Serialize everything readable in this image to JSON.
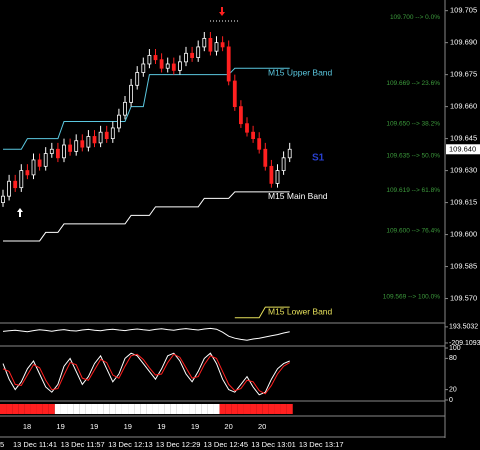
{
  "chart_data": [
    {
      "type": "candlestick",
      "open": [
        109.615,
        109.618,
        109.625,
        109.622,
        109.63,
        109.628,
        109.635,
        109.632,
        109.638,
        109.64,
        109.636,
        109.642,
        109.639,
        109.644,
        109.641,
        109.646,
        109.643,
        109.648,
        109.645,
        109.65,
        109.656,
        109.662,
        109.67,
        109.676,
        109.68,
        109.684,
        109.682,
        109.678,
        109.68,
        109.677,
        109.681,
        109.685,
        109.683,
        109.688,
        109.692,
        109.686,
        109.69,
        109.688,
        109.672,
        109.66,
        109.652,
        109.648,
        109.645,
        109.64,
        109.632,
        109.624,
        109.63,
        109.636
      ],
      "high": [
        109.621,
        109.628,
        109.628,
        109.633,
        109.633,
        109.638,
        109.638,
        109.641,
        109.643,
        109.643,
        109.645,
        109.645,
        109.647,
        109.647,
        109.649,
        109.649,
        109.651,
        109.651,
        109.653,
        109.659,
        109.665,
        109.673,
        109.679,
        109.683,
        109.687,
        109.687,
        109.685,
        109.683,
        109.683,
        109.684,
        109.688,
        109.688,
        109.691,
        109.695,
        109.695,
        109.693,
        109.693,
        109.691,
        109.675,
        109.663,
        109.655,
        109.651,
        109.648,
        109.643,
        109.635,
        109.633,
        109.639,
        109.643
      ],
      "low": [
        109.613,
        109.616,
        109.62,
        109.62,
        109.626,
        109.626,
        109.63,
        109.63,
        109.636,
        109.634,
        109.634,
        109.637,
        109.637,
        109.639,
        109.639,
        109.641,
        109.641,
        109.643,
        109.643,
        109.648,
        109.654,
        109.66,
        109.668,
        109.674,
        109.678,
        109.68,
        109.676,
        109.676,
        109.675,
        109.675,
        109.679,
        109.681,
        109.681,
        109.686,
        109.684,
        109.684,
        109.686,
        109.67,
        109.658,
        109.65,
        109.646,
        109.643,
        109.638,
        109.63,
        109.622,
        109.622,
        109.628,
        109.634
      ],
      "close": [
        109.618,
        109.625,
        109.622,
        109.63,
        109.628,
        109.635,
        109.632,
        109.638,
        109.64,
        109.636,
        109.642,
        109.639,
        109.644,
        109.641,
        109.646,
        109.643,
        109.648,
        109.645,
        109.65,
        109.656,
        109.662,
        109.67,
        109.676,
        109.68,
        109.684,
        109.682,
        109.678,
        109.68,
        109.677,
        109.681,
        109.685,
        109.683,
        109.688,
        109.692,
        109.686,
        109.69,
        109.688,
        109.672,
        109.66,
        109.652,
        109.648,
        109.645,
        109.64,
        109.632,
        109.624,
        109.63,
        109.636,
        109.64
      ],
      "up_color": "#ffffff",
      "down_color": "#ff2020",
      "ylim": [
        109.559,
        109.71
      ],
      "yticks": [
        {
          "value": 109.705,
          "label": "109.705"
        },
        {
          "value": 109.69,
          "label": "109.690"
        },
        {
          "value": 109.675,
          "label": "109.675"
        },
        {
          "value": 109.66,
          "label": "109.660"
        },
        {
          "value": 109.645,
          "label": "109.645"
        },
        {
          "value": 109.63,
          "label": "109.630"
        },
        {
          "value": 109.615,
          "label": "109.615"
        },
        {
          "value": 109.6,
          "label": "109.600"
        },
        {
          "value": 109.585,
          "label": "109.585"
        },
        {
          "value": 109.57,
          "label": "109.570"
        }
      ],
      "last_price": {
        "value": 109.64,
        "label": "109.640"
      },
      "series": [
        {
          "name": "M15 Upper Band",
          "color": "#5bc8e0",
          "values": [
            109.64,
            109.64,
            109.64,
            109.64,
            109.645,
            109.645,
            109.645,
            109.645,
            109.645,
            109.645,
            109.653,
            109.653,
            109.653,
            109.653,
            109.653,
            109.653,
            109.653,
            109.653,
            109.653,
            109.653,
            109.653,
            109.66,
            109.66,
            109.66,
            109.675,
            109.675,
            109.675,
            109.675,
            109.675,
            109.675,
            109.675,
            109.675,
            109.675,
            109.675,
            109.675,
            109.675,
            109.675,
            109.675,
            109.678,
            109.678,
            109.678,
            109.678,
            109.678,
            109.678,
            109.678,
            109.678,
            109.678,
            109.678
          ]
        },
        {
          "name": "M15 Main Band",
          "color": "#ffffff",
          "values": [
            109.597,
            109.597,
            109.597,
            109.597,
            109.597,
            109.597,
            109.597,
            109.601,
            109.601,
            109.601,
            109.605,
            109.605,
            109.605,
            109.605,
            109.605,
            109.605,
            109.605,
            109.605,
            109.605,
            109.605,
            109.605,
            109.609,
            109.609,
            109.609,
            109.609,
            109.613,
            109.613,
            109.613,
            109.613,
            109.613,
            109.613,
            109.613,
            109.613,
            109.617,
            109.617,
            109.617,
            109.617,
            109.617,
            109.62,
            109.62,
            109.62,
            109.62,
            109.62,
            109.62,
            109.62,
            109.62,
            109.62,
            109.62
          ]
        },
        {
          "name": "M15 Lower Band",
          "color": "#e6e05a",
          "values": [
            null,
            null,
            null,
            null,
            null,
            null,
            null,
            null,
            null,
            null,
            null,
            null,
            null,
            null,
            null,
            null,
            null,
            null,
            null,
            null,
            null,
            null,
            null,
            null,
            null,
            null,
            null,
            null,
            null,
            null,
            null,
            null,
            null,
            null,
            null,
            null,
            null,
            null,
            109.561,
            109.561,
            109.561,
            109.561,
            109.561,
            109.566,
            109.566,
            109.566,
            109.566,
            109.566
          ]
        }
      ],
      "fib_levels": [
        {
          "value": 109.7,
          "label": "109.700 --> 0.0%"
        },
        {
          "value": 109.669,
          "label": "109.669 --> 23.6%"
        },
        {
          "value": 109.65,
          "label": "109.650 --> 38.2%"
        },
        {
          "value": 109.635,
          "label": "109.635 --> 50.0%"
        },
        {
          "value": 109.619,
          "label": "109.619 --> 61.8%"
        },
        {
          "value": 109.6,
          "label": "109.600 --> 76.4%"
        },
        {
          "value": 109.569,
          "label": "109.569 --> 100.0%"
        }
      ],
      "fib_color": "#3c9a3c",
      "pivot": {
        "value": 109.636,
        "label": "S1"
      },
      "time_labels": [
        "5",
        "13 Dec 11:41",
        "13 Dec 11:57",
        "13 Dec 12:13",
        "13 Dec 12:29",
        "13 Dec 12:45",
        "13 Dec 13:01",
        "13 Dec 13:17"
      ]
    },
    {
      "type": "line",
      "ylim": [
        -260,
        240
      ],
      "yticks": [
        193.5032,
        -209.1093
      ],
      "series": [
        {
          "color": "#ffffff",
          "values": [
            80,
            95,
            110,
            90,
            70,
            100,
            120,
            105,
            85,
            110,
            125,
            100,
            90,
            115,
            130,
            110,
            95,
            120,
            135,
            115,
            100,
            125,
            140,
            120,
            105,
            130,
            145,
            125,
            110,
            135,
            150,
            130,
            115,
            140,
            155,
            135,
            60,
            -40,
            -90,
            -120,
            -140,
            -110,
            -90,
            -60,
            -30,
            0,
            40,
            70
          ]
        }
      ]
    },
    {
      "type": "line",
      "ylim": [
        0,
        100
      ],
      "yticks": [
        0,
        20,
        80,
        100
      ],
      "series": [
        {
          "color": "#ffffff",
          "values": [
            70,
            40,
            20,
            35,
            60,
            75,
            50,
            25,
            15,
            30,
            65,
            80,
            55,
            30,
            45,
            70,
            85,
            60,
            35,
            50,
            80,
            90,
            85,
            70,
            55,
            40,
            60,
            85,
            90,
            75,
            50,
            35,
            55,
            80,
            90,
            70,
            40,
            20,
            15,
            30,
            45,
            25,
            10,
            15,
            40,
            60,
            70,
            75
          ]
        },
        {
          "color": "#ff2020",
          "values": [
            60,
            55,
            30,
            28,
            48,
            68,
            62,
            38,
            20,
            22,
            48,
            72,
            68,
            42,
            38,
            58,
            78,
            72,
            48,
            42,
            65,
            85,
            88,
            78,
            62,
            48,
            50,
            72,
            88,
            82,
            62,
            42,
            45,
            68,
            85,
            80,
            55,
            30,
            18,
            22,
            38,
            35,
            18,
            12,
            28,
            50,
            65,
            72
          ]
        }
      ]
    },
    {
      "type": "strip",
      "colors": [
        "#ff2020",
        "#ff2020",
        "#ff2020",
        "#ff2020",
        "#ff2020",
        "#ff2020",
        "#ff2020",
        "#ff2020",
        "#ff2020",
        "#ffffff",
        "#ffffff",
        "#ffffff",
        "#ffffff",
        "#ffffff",
        "#ffffff",
        "#ffffff",
        "#ffffff",
        "#ffffff",
        "#ffffff",
        "#ffffff",
        "#ffffff",
        "#ffffff",
        "#ffffff",
        "#ffffff",
        "#ffffff",
        "#ffffff",
        "#ffffff",
        "#ffffff",
        "#ffffff",
        "#ffffff",
        "#ffffff",
        "#ffffff",
        "#ffffff",
        "#ffffff",
        "#ffffff",
        "#ffffff",
        "#ff2020",
        "#ff2020",
        "#ff2020",
        "#ff2020",
        "#ff2020",
        "#ff2020",
        "#ff2020",
        "#ff2020",
        "#ff2020",
        "#ff2020",
        "#ff2020",
        "#ff2020"
      ]
    },
    {
      "type": "text",
      "labels": [
        "18",
        "19",
        "19",
        "19",
        "19",
        "19",
        "20",
        "20"
      ]
    }
  ]
}
